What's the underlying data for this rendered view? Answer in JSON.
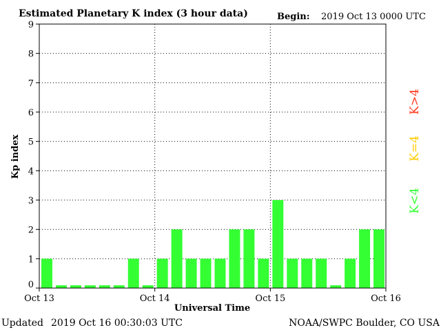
{
  "header": {
    "title": "Estimated Planetary K index (3 hour data)",
    "begin_label": "Begin:",
    "begin_value": "2019 Oct 13 0000 UTC"
  },
  "footer": {
    "updated_label": "Updated",
    "updated_value": "2019 Oct 16 00:30:03 UTC",
    "source": "NOAA/SWPC Boulder, CO USA"
  },
  "legend": {
    "items": [
      {
        "label": "K>4",
        "color": "#ff3b1f"
      },
      {
        "label": "K=4",
        "color": "#ffcc00"
      },
      {
        "label": "K<4",
        "color": "#33ff33"
      }
    ]
  },
  "chart_data": {
    "type": "bar",
    "xlabel": "Universal Time",
    "ylabel": "Kp index",
    "ylim": [
      0,
      9
    ],
    "yticks": [
      "0",
      "1",
      "2",
      "3",
      "4",
      "5",
      "6",
      "7",
      "8",
      "9"
    ],
    "xticks": [
      "Oct 13",
      "Oct 14",
      "Oct 15",
      "Oct 16"
    ],
    "bar_color": "#33ff33",
    "grid": "dotted",
    "values": [
      1,
      0,
      0,
      0,
      0,
      0,
      1,
      0,
      1,
      2,
      1,
      1,
      1,
      2,
      2,
      1,
      3,
      1,
      1,
      1,
      0,
      1,
      2,
      2
    ]
  }
}
